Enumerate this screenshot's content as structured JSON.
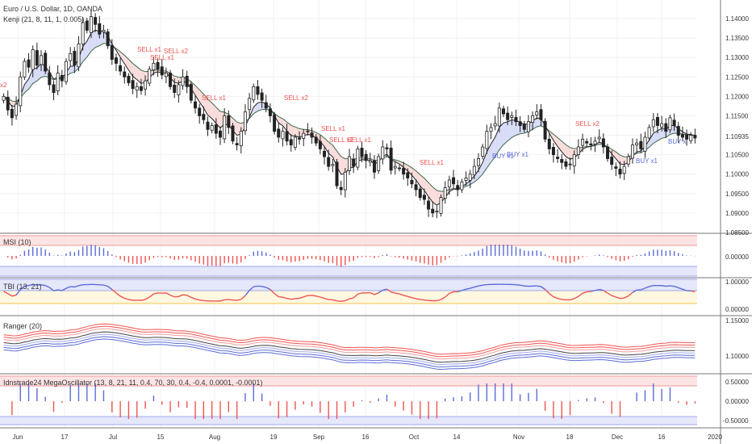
{
  "main": {
    "title": "Euro / U.S. Dollar, 1D, OANDA",
    "indicator": "Kenji (21, 8, 11, 1, 0.005)",
    "last_price": "1.10935",
    "y_ticks": [
      "1.14000",
      "1.13500",
      "1.13000",
      "1.12500",
      "1.12000",
      "1.11500",
      "1.11000",
      "1.10500",
      "1.10000",
      "1.09500",
      "1.09000",
      "1.08500"
    ]
  },
  "panes": {
    "msi": {
      "title": "MSI (10)",
      "ticks": [
        "0.00000"
      ]
    },
    "tbi": {
      "title": "TBI (13, 21)",
      "ticks": [
        "1.00000",
        "0.00000"
      ]
    },
    "ranger": {
      "title": "Ranger (20)",
      "ticks": [
        "1.15000",
        "1.10000"
      ]
    },
    "mega": {
      "title": "Idnstrade24 MegaOscillator (13, 8, 21, 11, 0.4, 70, 30, 0.4, -0.4, 0.0001, -0.0001)",
      "ticks": [
        "0.50000",
        "0.00000",
        "-0.50000"
      ]
    }
  },
  "x_axis": {
    "labels": [
      "Jun",
      "17",
      "Jul",
      "15",
      "Aug",
      "19",
      "Sep",
      "16",
      "Oct",
      "14",
      "Nov",
      "18",
      "Dec",
      "16",
      "2020"
    ]
  },
  "signals": [
    {
      "text": "x2",
      "kind": "sell"
    },
    {
      "text": "SELL x1",
      "kind": "sell"
    },
    {
      "text": "SELL x2",
      "kind": "sell"
    },
    {
      "text": "SELL x1",
      "kind": "sell"
    },
    {
      "text": "SELL x1",
      "kind": "sell"
    },
    {
      "text": "SELL x2",
      "kind": "sell"
    },
    {
      "text": "SELL x1",
      "kind": "sell"
    },
    {
      "text": "SELL x1",
      "kind": "sell"
    },
    {
      "text": "SELL x1",
      "kind": "sell"
    },
    {
      "text": "SELL x1",
      "kind": "sell"
    },
    {
      "text": "BUY x1",
      "kind": "buy"
    },
    {
      "text": "BUY x1",
      "kind": "buy"
    },
    {
      "text": "SELL x2",
      "kind": "sell"
    },
    {
      "text": "BUY x1",
      "kind": "buy"
    },
    {
      "text": "BUY x",
      "kind": "buy"
    }
  ],
  "colors": {
    "up": "#ffffff",
    "down": "#222222",
    "sell": "#ef5350",
    "buy": "#5b6bd6",
    "band_red": "#fde4e4",
    "band_blue": "#e5e7fb",
    "band_yellow": "#fff8e1",
    "grid": "#f0f0f0"
  },
  "chart_data": {
    "type": "candlestick",
    "symbol": "Euro / U.S. Dollar",
    "timeframe": "1D",
    "ylim": [
      1.085,
      1.1425
    ],
    "x_range": [
      "2019-05-28",
      "2019-12-31"
    ],
    "close": [
      1.12,
      1.1165,
      1.1145,
      1.118,
      1.125,
      1.129,
      1.1275,
      1.132,
      1.128,
      1.1305,
      1.1265,
      1.123,
      1.121,
      1.126,
      1.124,
      1.129,
      1.131,
      1.128,
      1.1335,
      1.139,
      1.137,
      1.1405,
      1.1385,
      1.136,
      1.137,
      1.133,
      1.1295,
      1.1285,
      1.1265,
      1.125,
      1.1235,
      1.122,
      1.1225,
      1.1215,
      1.124,
      1.127,
      1.1285,
      1.127,
      1.1255,
      1.126,
      1.1225,
      1.121,
      1.123,
      1.125,
      1.1225,
      1.119,
      1.117,
      1.115,
      1.114,
      1.1115,
      1.1125,
      1.1105,
      1.1095,
      1.115,
      1.112,
      1.1085,
      1.1075,
      1.111,
      1.116,
      1.1195,
      1.1225,
      1.1205,
      1.119,
      1.117,
      1.115,
      1.111,
      1.1095,
      1.111,
      1.1085,
      1.1075,
      1.1095,
      1.109,
      1.1105,
      1.111,
      1.1095,
      1.108,
      1.1065,
      1.1045,
      1.102,
      1.1025,
      1.097,
      1.096,
      1.1005,
      1.1045,
      1.102,
      1.1065,
      1.1045,
      1.1035,
      1.1035,
      1.1005,
      1.1045,
      1.107,
      1.1065,
      1.101,
      1.102,
      1.1015,
      1.1,
      1.099,
      1.0975,
      1.096,
      1.094,
      1.0935,
      1.091,
      1.09,
      1.0905,
      1.094,
      1.0965,
      1.0985,
      1.0975,
      1.096,
      1.098,
      1.099,
      1.1,
      1.102,
      1.104,
      1.107,
      1.111,
      1.112,
      1.113,
      1.117,
      1.1155,
      1.114,
      1.115,
      1.1135,
      1.1125,
      1.1115,
      1.1135,
      1.115,
      1.116,
      1.114,
      1.109,
      1.1065,
      1.105,
      1.104,
      1.103,
      1.102,
      1.1025,
      1.105,
      1.107,
      1.109,
      1.108,
      1.1075,
      1.1085,
      1.1095,
      1.107,
      1.104,
      1.1025,
      1.1015,
      1.1,
      1.102,
      1.1045,
      1.1075,
      1.108,
      1.1065,
      1.1095,
      1.112,
      1.114,
      1.1125,
      1.113,
      1.111,
      1.1145,
      1.1125,
      1.11,
      1.1095,
      1.109,
      1.11,
      1.1093
    ],
    "buy_sell_signals": "SELL x1, SELL x2, BUY x1 labels plotted above/below candles"
  }
}
